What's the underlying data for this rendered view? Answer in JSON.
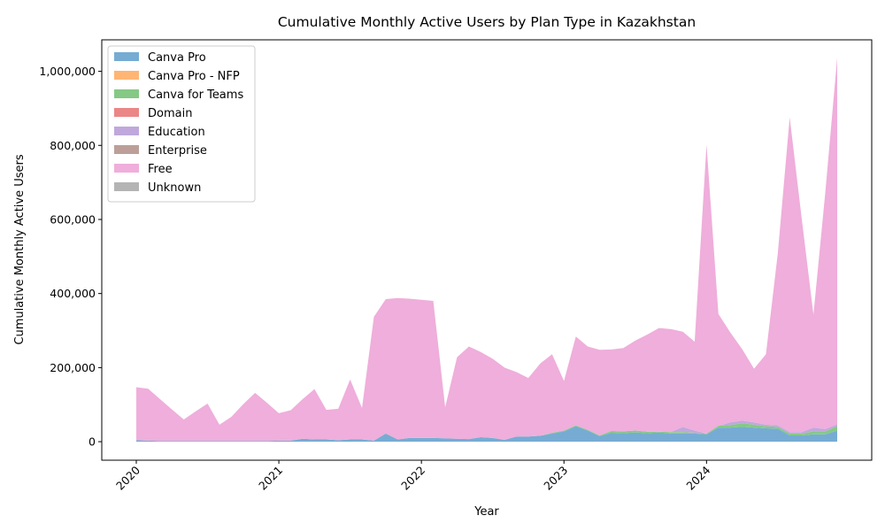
{
  "chart_data": {
    "type": "area",
    "stacked": true,
    "title": "Cumulative Monthly Active Users by Plan Type in Kazakhstan",
    "xlabel": "Year",
    "ylabel": "Cumulative Monthly Active Users",
    "x_ticks": [
      "2020",
      "2021",
      "2022",
      "2023",
      "2024"
    ],
    "y_ticks": [
      "0",
      "200,000",
      "400,000",
      "600,000",
      "800,000",
      "1,000,000"
    ],
    "y_tick_values": [
      0,
      200000,
      400000,
      600000,
      800000,
      1000000
    ],
    "ylim": [
      -50000,
      1085000
    ],
    "x_start": "2020-01",
    "x_end": "2024-12",
    "legend_position": "upper-left",
    "grid": false,
    "x": [
      "2020-01",
      "2020-02",
      "2020-03",
      "2020-04",
      "2020-05",
      "2020-06",
      "2020-07",
      "2020-08",
      "2020-09",
      "2020-10",
      "2020-11",
      "2020-12",
      "2021-01",
      "2021-02",
      "2021-03",
      "2021-04",
      "2021-05",
      "2021-06",
      "2021-07",
      "2021-08",
      "2021-09",
      "2021-10",
      "2021-11",
      "2021-12",
      "2022-01",
      "2022-02",
      "2022-03",
      "2022-04",
      "2022-05",
      "2022-06",
      "2022-07",
      "2022-08",
      "2022-09",
      "2022-10",
      "2022-11",
      "2022-12",
      "2023-01",
      "2023-02",
      "2023-03",
      "2023-04",
      "2023-05",
      "2023-06",
      "2023-07",
      "2023-08",
      "2023-09",
      "2023-10",
      "2023-11",
      "2023-12",
      "2024-01",
      "2024-02",
      "2024-03",
      "2024-04",
      "2024-05",
      "2024-06",
      "2024-07",
      "2024-08",
      "2024-09",
      "2024-10",
      "2024-11",
      "2024-12"
    ],
    "series": [
      {
        "name": "Canva Pro",
        "color": "#76acd3",
        "values": [
          4000,
          3000,
          2000,
          2000,
          2000,
          2000,
          2000,
          2000,
          2000,
          2000,
          2000,
          2000,
          3000,
          3000,
          8000,
          6000,
          6000,
          4000,
          6000,
          6000,
          3000,
          22000,
          6000,
          10000,
          10000,
          10000,
          9000,
          8000,
          7000,
          12000,
          10000,
          5000,
          14000,
          14000,
          16000,
          22000,
          28000,
          42000,
          30000,
          15000,
          24000,
          23000,
          25000,
          23000,
          25000,
          22000,
          22000,
          22000,
          20000,
          38000,
          38000,
          40000,
          38000,
          36000,
          35000,
          17000,
          17000,
          20000,
          20000,
          30000
        ]
      },
      {
        "name": "Canva Pro - NFP",
        "color": "#ffb574",
        "values": [
          0,
          0,
          0,
          0,
          0,
          0,
          0,
          0,
          0,
          0,
          0,
          0,
          0,
          0,
          0,
          0,
          0,
          0,
          0,
          0,
          0,
          0,
          0,
          0,
          0,
          0,
          0,
          0,
          0,
          0,
          0,
          0,
          0,
          0,
          0,
          0,
          0,
          0,
          0,
          0,
          0,
          0,
          0,
          0,
          0,
          0,
          0,
          0,
          0,
          0,
          0,
          0,
          0,
          0,
          0,
          0,
          0,
          0,
          0,
          0
        ]
      },
      {
        "name": "Canva for Teams",
        "color": "#85c985",
        "values": [
          0,
          0,
          0,
          0,
          0,
          0,
          0,
          0,
          0,
          0,
          0,
          0,
          0,
          0,
          0,
          0,
          0,
          0,
          0,
          0,
          0,
          0,
          0,
          0,
          0,
          0,
          0,
          0,
          0,
          0,
          0,
          0,
          0,
          0,
          0,
          2000,
          2000,
          2000,
          2000,
          2000,
          5000,
          5000,
          5000,
          4000,
          2000,
          4000,
          4000,
          2000,
          2000,
          5000,
          7000,
          10000,
          8000,
          6000,
          5000,
          5000,
          5000,
          8000,
          8000,
          12000
        ]
      },
      {
        "name": "Domain",
        "color": "#eb8686",
        "values": [
          0,
          0,
          0,
          0,
          0,
          0,
          0,
          0,
          0,
          0,
          0,
          0,
          0,
          0,
          0,
          0,
          0,
          0,
          0,
          0,
          0,
          0,
          0,
          0,
          0,
          0,
          0,
          0,
          0,
          0,
          0,
          0,
          0,
          0,
          0,
          0,
          0,
          0,
          0,
          0,
          0,
          0,
          0,
          0,
          0,
          0,
          0,
          0,
          0,
          0,
          0,
          0,
          0,
          0,
          0,
          0,
          0,
          0,
          0,
          0
        ]
      },
      {
        "name": "Education",
        "color": "#c0a8dc",
        "values": [
          0,
          0,
          0,
          0,
          0,
          0,
          0,
          0,
          0,
          0,
          0,
          0,
          0,
          0,
          0,
          0,
          0,
          0,
          0,
          0,
          0,
          0,
          0,
          0,
          0,
          0,
          0,
          0,
          0,
          0,
          0,
          0,
          0,
          0,
          0,
          0,
          0,
          0,
          0,
          0,
          0,
          0,
          0,
          0,
          0,
          0,
          14000,
          6000,
          0,
          0,
          7000,
          7000,
          6000,
          4000,
          4000,
          4000,
          4000,
          10000,
          6000,
          5000
        ]
      },
      {
        "name": "Enterprise",
        "color": "#bd9f99",
        "values": [
          0,
          0,
          0,
          0,
          0,
          0,
          0,
          0,
          0,
          0,
          0,
          0,
          0,
          0,
          0,
          0,
          0,
          0,
          0,
          0,
          0,
          0,
          0,
          0,
          0,
          0,
          0,
          0,
          0,
          0,
          0,
          0,
          0,
          0,
          0,
          0,
          0,
          0,
          0,
          0,
          0,
          0,
          0,
          0,
          0,
          0,
          0,
          0,
          0,
          0,
          0,
          0,
          0,
          0,
          0,
          0,
          0,
          0,
          0,
          0
        ]
      },
      {
        "name": "Free",
        "color": "#efaedb",
        "values": [
          143000,
          140000,
          113000,
          85000,
          58000,
          80000,
          101000,
          44000,
          65000,
          99000,
          130000,
          103000,
          74000,
          82000,
          107000,
          136000,
          80000,
          85000,
          162000,
          85000,
          334000,
          363000,
          382000,
          376000,
          373000,
          370000,
          84000,
          220000,
          250000,
          230000,
          214000,
          195000,
          174000,
          158000,
          195000,
          212000,
          134000,
          240000,
          225000,
          231000,
          220000,
          225000,
          243000,
          262000,
          280000,
          278000,
          257000,
          240000,
          780000,
          302000,
          243000,
          193000,
          145000,
          190000,
          465000,
          850000,
          580000,
          305000,
          640000,
          990000
        ]
      },
      {
        "name": "Unknown",
        "color": "#b4b4b4",
        "values": [
          0,
          0,
          0,
          0,
          0,
          0,
          0,
          0,
          0,
          0,
          0,
          0,
          0,
          0,
          0,
          0,
          0,
          0,
          0,
          0,
          0,
          0,
          0,
          0,
          0,
          0,
          0,
          0,
          0,
          0,
          0,
          0,
          0,
          0,
          0,
          0,
          0,
          0,
          0,
          0,
          0,
          0,
          0,
          0,
          0,
          0,
          0,
          0,
          0,
          0,
          0,
          0,
          0,
          0,
          0,
          0,
          0,
          0,
          0,
          0
        ]
      }
    ]
  }
}
